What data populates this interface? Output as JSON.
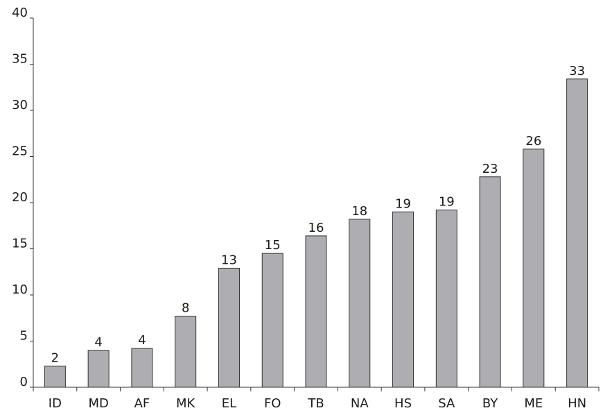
{
  "chart_data": {
    "type": "bar",
    "title": "",
    "xlabel": "",
    "ylabel": "",
    "categories": [
      "ID",
      "MD",
      "AF",
      "MK",
      "EL",
      "FO",
      "TB",
      "NA",
      "HS",
      "SA",
      "BY",
      "ME",
      "HN"
    ],
    "values": [
      2.3,
      4.0,
      4.2,
      7.7,
      12.9,
      14.5,
      16.4,
      18.2,
      19.0,
      19.2,
      22.8,
      25.8,
      33.4
    ],
    "data_labels": [
      "2",
      "4",
      "4",
      "8",
      "13",
      "15",
      "16",
      "18",
      "19",
      "19",
      "23",
      "26",
      "33"
    ],
    "ylim": [
      0,
      40
    ],
    "yticks": [
      0,
      5,
      10,
      15,
      20,
      25,
      30,
      35,
      40
    ],
    "grid": false,
    "legend": "none",
    "colors": {
      "bar_fill": "#adadb2",
      "bar_stroke": "#333333",
      "axis": "#333333"
    }
  }
}
